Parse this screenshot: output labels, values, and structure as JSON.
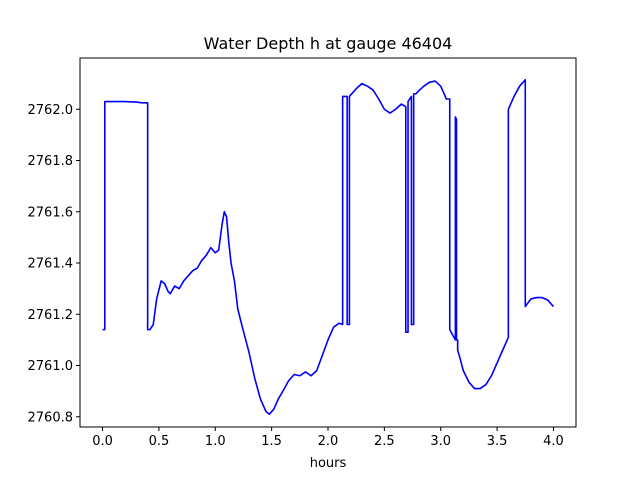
{
  "chart_data": {
    "type": "line",
    "title": "Water Depth h at gauge 46404",
    "xlabel": "hours",
    "ylabel": "",
    "xlim": [
      -0.2,
      4.2
    ],
    "ylim": [
      2760.76,
      2762.2
    ],
    "xticks": [
      0.0,
      0.5,
      1.0,
      1.5,
      2.0,
      2.5,
      3.0,
      3.5,
      4.0
    ],
    "xtick_labels": [
      "0.0",
      "0.5",
      "1.0",
      "1.5",
      "2.0",
      "2.5",
      "3.0",
      "3.5",
      "4.0"
    ],
    "yticks": [
      2760.8,
      2761.0,
      2761.2,
      2761.4,
      2761.6,
      2761.8,
      2762.0
    ],
    "ytick_labels": [
      "2760.8",
      "2761.0",
      "2761.2",
      "2761.4",
      "2761.6",
      "2761.8",
      "2762.0"
    ],
    "grid": false,
    "line_color": "#0000ff",
    "series": [
      {
        "x": [
          0.0,
          0.02,
          0.02,
          0.1,
          0.2,
          0.3,
          0.35,
          0.4,
          0.4,
          0.42,
          0.45,
          0.48,
          0.52,
          0.55,
          0.58,
          0.6,
          0.64,
          0.68,
          0.72,
          0.76,
          0.8,
          0.84,
          0.88,
          0.92,
          0.96,
          1.0,
          1.03,
          1.06,
          1.08,
          1.1,
          1.12,
          1.14,
          1.17,
          1.2,
          1.24,
          1.3,
          1.35,
          1.4,
          1.45,
          1.48,
          1.52,
          1.56,
          1.6,
          1.65,
          1.7,
          1.75,
          1.8,
          1.85,
          1.9,
          1.95,
          2.0,
          2.05,
          2.1,
          2.13,
          2.13,
          2.17,
          2.17,
          2.19,
          2.19,
          2.25,
          2.3,
          2.35,
          2.4,
          2.45,
          2.5,
          2.55,
          2.6,
          2.65,
          2.69,
          2.69,
          2.71,
          2.71,
          2.74,
          2.74,
          2.76,
          2.76,
          2.78,
          2.78,
          2.8,
          2.85,
          2.9,
          2.95,
          3.0,
          3.05,
          3.08,
          3.08,
          3.13,
          3.13,
          3.14,
          3.14,
          3.15,
          3.15,
          3.17,
          3.2,
          3.25,
          3.3,
          3.35,
          3.4,
          3.45,
          3.5,
          3.55,
          3.6,
          3.6,
          3.65,
          3.7,
          3.75,
          3.75,
          3.8,
          3.85,
          3.9,
          3.95,
          4.0
        ],
        "y": [
          2761.14,
          2761.14,
          2762.03,
          2762.03,
          2762.03,
          2762.028,
          2762.025,
          2762.025,
          2761.14,
          2761.14,
          2761.16,
          2761.26,
          2761.33,
          2761.32,
          2761.29,
          2761.28,
          2761.31,
          2761.3,
          2761.33,
          2761.35,
          2761.37,
          2761.38,
          2761.41,
          2761.43,
          2761.46,
          2761.44,
          2761.45,
          2761.55,
          2761.6,
          2761.58,
          2761.48,
          2761.4,
          2761.33,
          2761.22,
          2761.15,
          2761.05,
          2760.95,
          2760.87,
          2760.82,
          2760.81,
          2760.83,
          2760.87,
          2760.9,
          2760.94,
          2760.965,
          2760.96,
          2760.975,
          2760.96,
          2760.98,
          2761.04,
          2761.1,
          2761.15,
          2761.165,
          2761.16,
          2762.05,
          2762.05,
          2761.16,
          2761.16,
          2762.05,
          2762.08,
          2762.1,
          2762.09,
          2762.075,
          2762.04,
          2762.0,
          2761.985,
          2762.0,
          2762.02,
          2762.01,
          2761.13,
          2761.13,
          2762.03,
          2762.05,
          2761.16,
          2761.16,
          2762.06,
          2762.06,
          2762.06,
          2762.07,
          2762.09,
          2762.105,
          2762.11,
          2762.09,
          2762.04,
          2762.04,
          2761.14,
          2761.1,
          2761.97,
          2761.96,
          2761.1,
          2761.1,
          2761.06,
          2761.03,
          2760.98,
          2760.935,
          2760.91,
          2760.91,
          2760.925,
          2760.96,
          2761.01,
          2761.06,
          2761.11,
          2762.0,
          2762.05,
          2762.09,
          2762.115,
          2761.23,
          2761.26,
          2761.265,
          2761.265,
          2761.255,
          2761.23
        ]
      }
    ]
  }
}
